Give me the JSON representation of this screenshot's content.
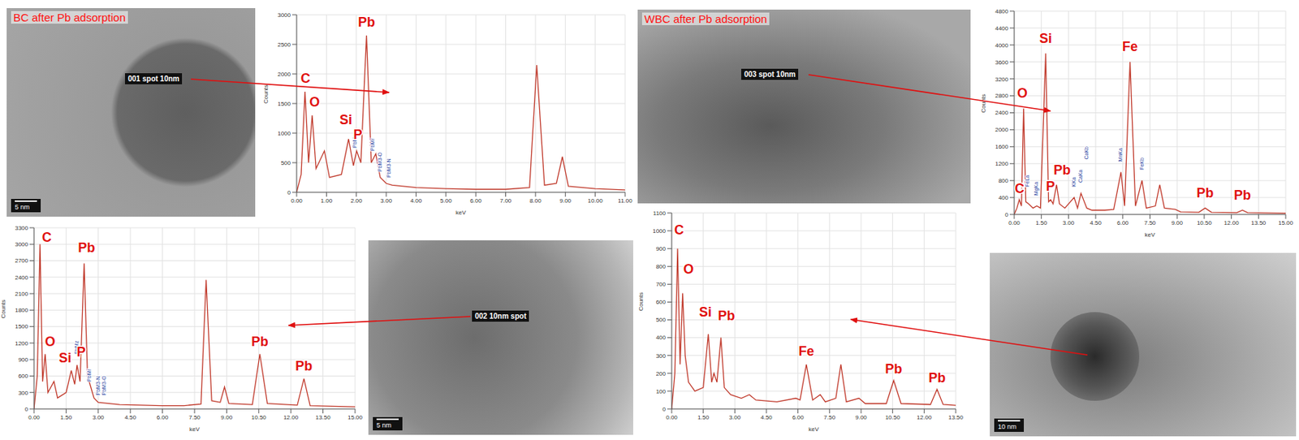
{
  "images": [
    {
      "title": "BC after Pb adsorption",
      "spot_label": "001 spot 10nm",
      "scale_bar": "5 nm"
    },
    {
      "title": "WBC after Pb adsorption",
      "spot_label": "003 spot 10nm"
    },
    {
      "spot_label": "002 10nm spot",
      "scale_bar": "5 nm"
    },
    {
      "scale_bar": "10 nm"
    }
  ],
  "chart_data": [
    {
      "type": "line",
      "x_label": "keV",
      "y_label": "Counts",
      "color": "#c0392b",
      "grid": true,
      "x": [
        0,
        0.15,
        0.28,
        0.4,
        0.52,
        0.65,
        0.93,
        1.1,
        1.5,
        1.74,
        1.9,
        2.01,
        2.15,
        2.34,
        2.5,
        2.65,
        2.8,
        3.0,
        3.2,
        4.0,
        5.0,
        6.0,
        7.0,
        7.8,
        8.04,
        8.3,
        8.7,
        8.9,
        9.1,
        10.0,
        11.0
      ],
      "values": [
        0,
        300,
        1700,
        500,
        1300,
        400,
        700,
        250,
        300,
        900,
        450,
        700,
        500,
        2650,
        500,
        650,
        250,
        150,
        120,
        80,
        60,
        50,
        50,
        80,
        2150,
        120,
        150,
        600,
        100,
        60,
        40
      ],
      "xlim": [
        0,
        11
      ],
      "xticks": [
        {
          "value": 0,
          "label": "0.00"
        },
        {
          "value": 1,
          "label": "1.00"
        },
        {
          "value": 2,
          "label": "2.00"
        },
        {
          "value": 3,
          "label": "3.00"
        },
        {
          "value": 4,
          "label": "4.00"
        },
        {
          "value": 5,
          "label": "5.00"
        },
        {
          "value": 6,
          "label": "6.00"
        },
        {
          "value": 7,
          "label": "7.00"
        },
        {
          "value": 8,
          "label": "8.00"
        },
        {
          "value": 9,
          "label": "9.00"
        },
        {
          "value": 10,
          "label": "10.00"
        },
        {
          "value": 11,
          "label": "11.00"
        }
      ],
      "ylim": [
        0,
        3000
      ],
      "yticks": [
        0,
        500,
        1000,
        1500,
        2000,
        2500,
        3000
      ],
      "element_labels": [
        {
          "text": "C",
          "x": 0.3,
          "y": 1850
        },
        {
          "text": "O",
          "x": 0.6,
          "y": 1450
        },
        {
          "text": "Si",
          "x": 1.65,
          "y": 1150
        },
        {
          "text": "P",
          "x": 2.05,
          "y": 900
        },
        {
          "text": "Pb",
          "x": 2.34,
          "y": 2800
        }
      ],
      "peak_labels": [
        {
          "text": "PbMz",
          "x": 1.95,
          "y": 750
        },
        {
          "text": "PbMr",
          "x": 2.55,
          "y": 700
        },
        {
          "text": "PbM3-O",
          "x": 2.8,
          "y": 350
        },
        {
          "text": "PbM3-N",
          "x": 3.1,
          "y": 250
        }
      ]
    },
    {
      "type": "line",
      "x_label": "keV",
      "y_label": "Counts",
      "color": "#c0392b",
      "grid": true,
      "x": [
        0,
        0.15,
        0.28,
        0.4,
        0.52,
        0.65,
        0.93,
        1.1,
        1.5,
        1.74,
        1.9,
        2.01,
        2.15,
        2.34,
        2.5,
        2.65,
        2.8,
        3.0,
        4.0,
        5.0,
        6.0,
        7.0,
        7.8,
        8.04,
        8.3,
        8.7,
        8.9,
        9.1,
        10.2,
        10.55,
        10.9,
        12.3,
        12.61,
        12.9,
        15
      ],
      "values": [
        0,
        600,
        3000,
        500,
        1000,
        300,
        500,
        200,
        300,
        700,
        450,
        800,
        500,
        2650,
        600,
        400,
        200,
        120,
        80,
        70,
        60,
        60,
        90,
        2350,
        150,
        120,
        400,
        100,
        80,
        1000,
        100,
        70,
        550,
        60,
        40
      ],
      "xlim": [
        0,
        15
      ],
      "xticks": [
        {
          "value": 0,
          "label": "0.00"
        },
        {
          "value": 1.5,
          "label": "1.50"
        },
        {
          "value": 3,
          "label": "3.00"
        },
        {
          "value": 4.5,
          "label": "4.50"
        },
        {
          "value": 6,
          "label": "6.00"
        },
        {
          "value": 7.5,
          "label": "7.50"
        },
        {
          "value": 9,
          "label": "9.00"
        },
        {
          "value": 10.5,
          "label": "10.50"
        },
        {
          "value": 12,
          "label": "12.00"
        },
        {
          "value": 13.5,
          "label": "13.50"
        },
        {
          "value": 15,
          "label": "15.00"
        }
      ],
      "ylim": [
        0,
        3300
      ],
      "yticks": [
        0,
        300,
        600,
        900,
        1200,
        1500,
        1800,
        2100,
        2400,
        2700,
        3000,
        3300
      ],
      "element_labels": [
        {
          "text": "C",
          "x": 0.6,
          "y": 3050
        },
        {
          "text": "O",
          "x": 0.75,
          "y": 1150
        },
        {
          "text": "Si",
          "x": 1.45,
          "y": 850
        },
        {
          "text": "P",
          "x": 2.2,
          "y": 950
        },
        {
          "text": "Pb",
          "x": 2.45,
          "y": 2850
        },
        {
          "text": "Pb",
          "x": 10.55,
          "y": 1150
        },
        {
          "text": "Pb",
          "x": 12.61,
          "y": 700
        }
      ],
      "peak_labels": [
        {
          "text": "PbMz",
          "x": 2.0,
          "y": 1000
        },
        {
          "text": "PbMr",
          "x": 2.6,
          "y": 500
        },
        {
          "text": "PbM3-N",
          "x": 3.0,
          "y": 250
        },
        {
          "text": "PbM3-O",
          "x": 3.3,
          "y": 250
        }
      ]
    },
    {
      "type": "line",
      "x_label": "keV",
      "y_label": "Counts",
      "color": "#c0392b",
      "grid": true,
      "x": [
        0,
        0.15,
        0.28,
        0.4,
        0.52,
        0.64,
        0.8,
        1.04,
        1.25,
        1.45,
        1.74,
        1.9,
        2.01,
        2.15,
        2.34,
        2.5,
        2.8,
        3.31,
        3.5,
        3.69,
        4.01,
        4.3,
        5.0,
        5.5,
        5.9,
        6.1,
        6.4,
        6.7,
        7.06,
        7.3,
        7.8,
        8.04,
        8.3,
        8.9,
        9.2,
        10.2,
        10.55,
        10.9,
        12.3,
        12.61,
        12.9,
        15
      ],
      "values": [
        0,
        150,
        350,
        200,
        2500,
        300,
        250,
        150,
        200,
        150,
        3800,
        300,
        350,
        250,
        700,
        250,
        150,
        400,
        150,
        500,
        150,
        100,
        100,
        120,
        1000,
        200,
        3600,
        200,
        800,
        150,
        200,
        700,
        150,
        120,
        60,
        50,
        150,
        50,
        40,
        100,
        40,
        30
      ],
      "xlim": [
        0,
        15
      ],
      "xticks": [
        {
          "value": 0,
          "label": "0.00"
        },
        {
          "value": 1.5,
          "label": "1.50"
        },
        {
          "value": 3,
          "label": "3.00"
        },
        {
          "value": 4.5,
          "label": "4.50"
        },
        {
          "value": 6,
          "label": "6.00"
        },
        {
          "value": 7.5,
          "label": "7.50"
        },
        {
          "value": 9,
          "label": "9.00"
        },
        {
          "value": 10.5,
          "label": "10.50"
        },
        {
          "value": 12,
          "label": "12.00"
        },
        {
          "value": 13.5,
          "label": "13.50"
        },
        {
          "value": 15,
          "label": "15.00"
        }
      ],
      "ylim": [
        0,
        4800
      ],
      "yticks": [
        0,
        400,
        800,
        1200,
        1600,
        2000,
        2400,
        2800,
        3200,
        3600,
        4000,
        4400,
        4800
      ],
      "element_labels": [
        {
          "text": "C",
          "x": 0.3,
          "y": 500
        },
        {
          "text": "O",
          "x": 0.45,
          "y": 2750
        },
        {
          "text": "Si",
          "x": 1.74,
          "y": 4050
        },
        {
          "text": "P",
          "x": 2.0,
          "y": 550
        },
        {
          "text": "Pb",
          "x": 2.65,
          "y": 950
        },
        {
          "text": "Fe",
          "x": 6.4,
          "y": 3850
        },
        {
          "text": "Pb",
          "x": 10.55,
          "y": 400
        },
        {
          "text": "Pb",
          "x": 12.61,
          "y": 350
        }
      ],
      "peak_labels": [
        {
          "text": "FeLa",
          "x": 0.75,
          "y": 650
        },
        {
          "text": "MgKa",
          "x": 1.25,
          "y": 450
        },
        {
          "text": "KKa",
          "x": 3.31,
          "y": 650
        },
        {
          "text": "CaKa",
          "x": 3.69,
          "y": 750
        },
        {
          "text": "CaKb",
          "x": 4.01,
          "y": 1300
        },
        {
          "text": "MnKa",
          "x": 5.9,
          "y": 1250
        },
        {
          "text": "FeKb",
          "x": 7.06,
          "y": 1050
        }
      ]
    },
    {
      "type": "line",
      "x_label": "keV",
      "y_label": "Counts",
      "color": "#c0392b",
      "grid": true,
      "x": [
        0,
        0.15,
        0.28,
        0.4,
        0.52,
        0.64,
        0.8,
        1.1,
        1.5,
        1.74,
        1.9,
        2.01,
        2.15,
        2.34,
        2.5,
        2.8,
        3.31,
        3.69,
        4.0,
        5.0,
        5.9,
        6.1,
        6.4,
        6.7,
        7.06,
        7.3,
        7.8,
        8.04,
        8.3,
        8.9,
        9.2,
        10.2,
        10.55,
        10.9,
        12.3,
        12.61,
        12.9,
        13.5
      ],
      "values": [
        0,
        200,
        900,
        250,
        650,
        300,
        150,
        100,
        120,
        420,
        150,
        200,
        150,
        400,
        120,
        80,
        60,
        80,
        50,
        40,
        60,
        50,
        250,
        50,
        80,
        40,
        60,
        250,
        40,
        60,
        30,
        30,
        160,
        30,
        25,
        110,
        25,
        20
      ],
      "xlim": [
        0,
        13.5
      ],
      "xticks": [
        {
          "value": 0,
          "label": "0.00"
        },
        {
          "value": 1.5,
          "label": "1.50"
        },
        {
          "value": 3,
          "label": "3.00"
        },
        {
          "value": 4.5,
          "label": "4.50"
        },
        {
          "value": 6,
          "label": "6.00"
        },
        {
          "value": 7.5,
          "label": "7.50"
        },
        {
          "value": 9,
          "label": "9.00"
        },
        {
          "value": 10.5,
          "label": "10.50"
        },
        {
          "value": 12,
          "label": "12.00"
        },
        {
          "value": 13.5,
          "label": "13.50"
        }
      ],
      "ylim": [
        0,
        1100
      ],
      "yticks": [
        0,
        100,
        200,
        300,
        400,
        500,
        600,
        700,
        800,
        900,
        1000,
        1100
      ],
      "element_labels": [
        {
          "text": "C",
          "x": 0.35,
          "y": 980
        },
        {
          "text": "O",
          "x": 0.8,
          "y": 760
        },
        {
          "text": "Si",
          "x": 1.6,
          "y": 520
        },
        {
          "text": "Pb",
          "x": 2.6,
          "y": 500
        },
        {
          "text": "Fe",
          "x": 6.4,
          "y": 300
        },
        {
          "text": "Pb",
          "x": 10.55,
          "y": 200
        },
        {
          "text": "Pb",
          "x": 12.61,
          "y": 150
        }
      ]
    }
  ]
}
